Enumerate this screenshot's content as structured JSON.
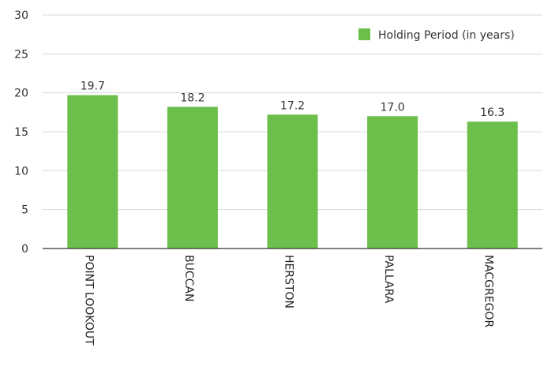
{
  "chart_data": {
    "type": "bar",
    "categories": [
      "POINT LOOKOUT",
      "BUCCAN",
      "HERSTON",
      "PALLARA",
      "MACGREGOR"
    ],
    "series": [
      {
        "name": "Holding Period (in years)",
        "values": [
          19.7,
          18.2,
          17.2,
          17.0,
          16.3
        ]
      }
    ],
    "data_labels": [
      "19.7",
      "18.2",
      "17.2",
      "17.0",
      "16.3"
    ],
    "ylim": [
      0,
      30
    ],
    "yticks": [
      0,
      5,
      10,
      15,
      20,
      25,
      30
    ],
    "grid": true,
    "legend_position": "top-right",
    "colors": {
      "bar": "#6dbf4b",
      "grid": "#d9d9d9",
      "axis": "#333333"
    }
  }
}
